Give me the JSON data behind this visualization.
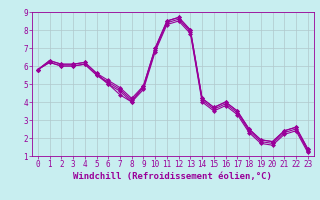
{
  "xlabel": "Windchill (Refroidissement éolien,°C)",
  "background_color": "#c8eef0",
  "line_color": "#990099",
  "xlim": [
    -0.5,
    23.5
  ],
  "ylim": [
    1,
    9
  ],
  "xticks": [
    0,
    1,
    2,
    3,
    4,
    5,
    6,
    7,
    8,
    9,
    10,
    11,
    12,
    13,
    14,
    15,
    16,
    17,
    18,
    19,
    20,
    21,
    22,
    23
  ],
  "yticks": [
    1,
    2,
    3,
    4,
    5,
    6,
    7,
    8,
    9
  ],
  "hours": [
    0,
    1,
    2,
    3,
    4,
    5,
    6,
    7,
    8,
    9,
    10,
    11,
    12,
    13,
    14,
    15,
    16,
    17,
    18,
    19,
    20,
    21,
    22,
    23
  ],
  "series": [
    [
      5.8,
      6.3,
      6.1,
      6.1,
      6.2,
      5.6,
      5.0,
      4.4,
      4.0,
      4.9,
      7.0,
      8.5,
      8.7,
      8.0,
      4.2,
      3.7,
      4.0,
      3.5,
      2.5,
      1.9,
      1.8,
      2.4,
      2.6,
      1.4
    ],
    [
      5.8,
      6.3,
      6.1,
      6.1,
      6.2,
      5.6,
      5.2,
      4.8,
      4.2,
      4.9,
      7.0,
      8.5,
      8.7,
      8.0,
      4.2,
      3.7,
      4.0,
      3.5,
      2.5,
      1.9,
      1.8,
      2.4,
      2.6,
      1.4
    ],
    [
      5.8,
      6.2,
      6.0,
      6.0,
      6.1,
      5.5,
      5.0,
      4.6,
      4.0,
      4.7,
      6.8,
      8.3,
      8.5,
      7.8,
      4.0,
      3.5,
      3.8,
      3.3,
      2.3,
      1.7,
      1.6,
      2.2,
      2.4,
      1.2
    ],
    [
      5.8,
      6.2,
      6.0,
      6.0,
      6.1,
      5.5,
      5.1,
      4.7,
      4.1,
      4.8,
      6.9,
      8.4,
      8.6,
      7.9,
      4.1,
      3.6,
      3.9,
      3.4,
      2.4,
      1.8,
      1.7,
      2.3,
      2.5,
      1.3
    ]
  ],
  "marker": "D",
  "markersize": 2,
  "linewidth": 0.8,
  "grid_color": "#b0c8cc",
  "tick_label_fontsize": 5.5,
  "xlabel_fontsize": 6.5
}
